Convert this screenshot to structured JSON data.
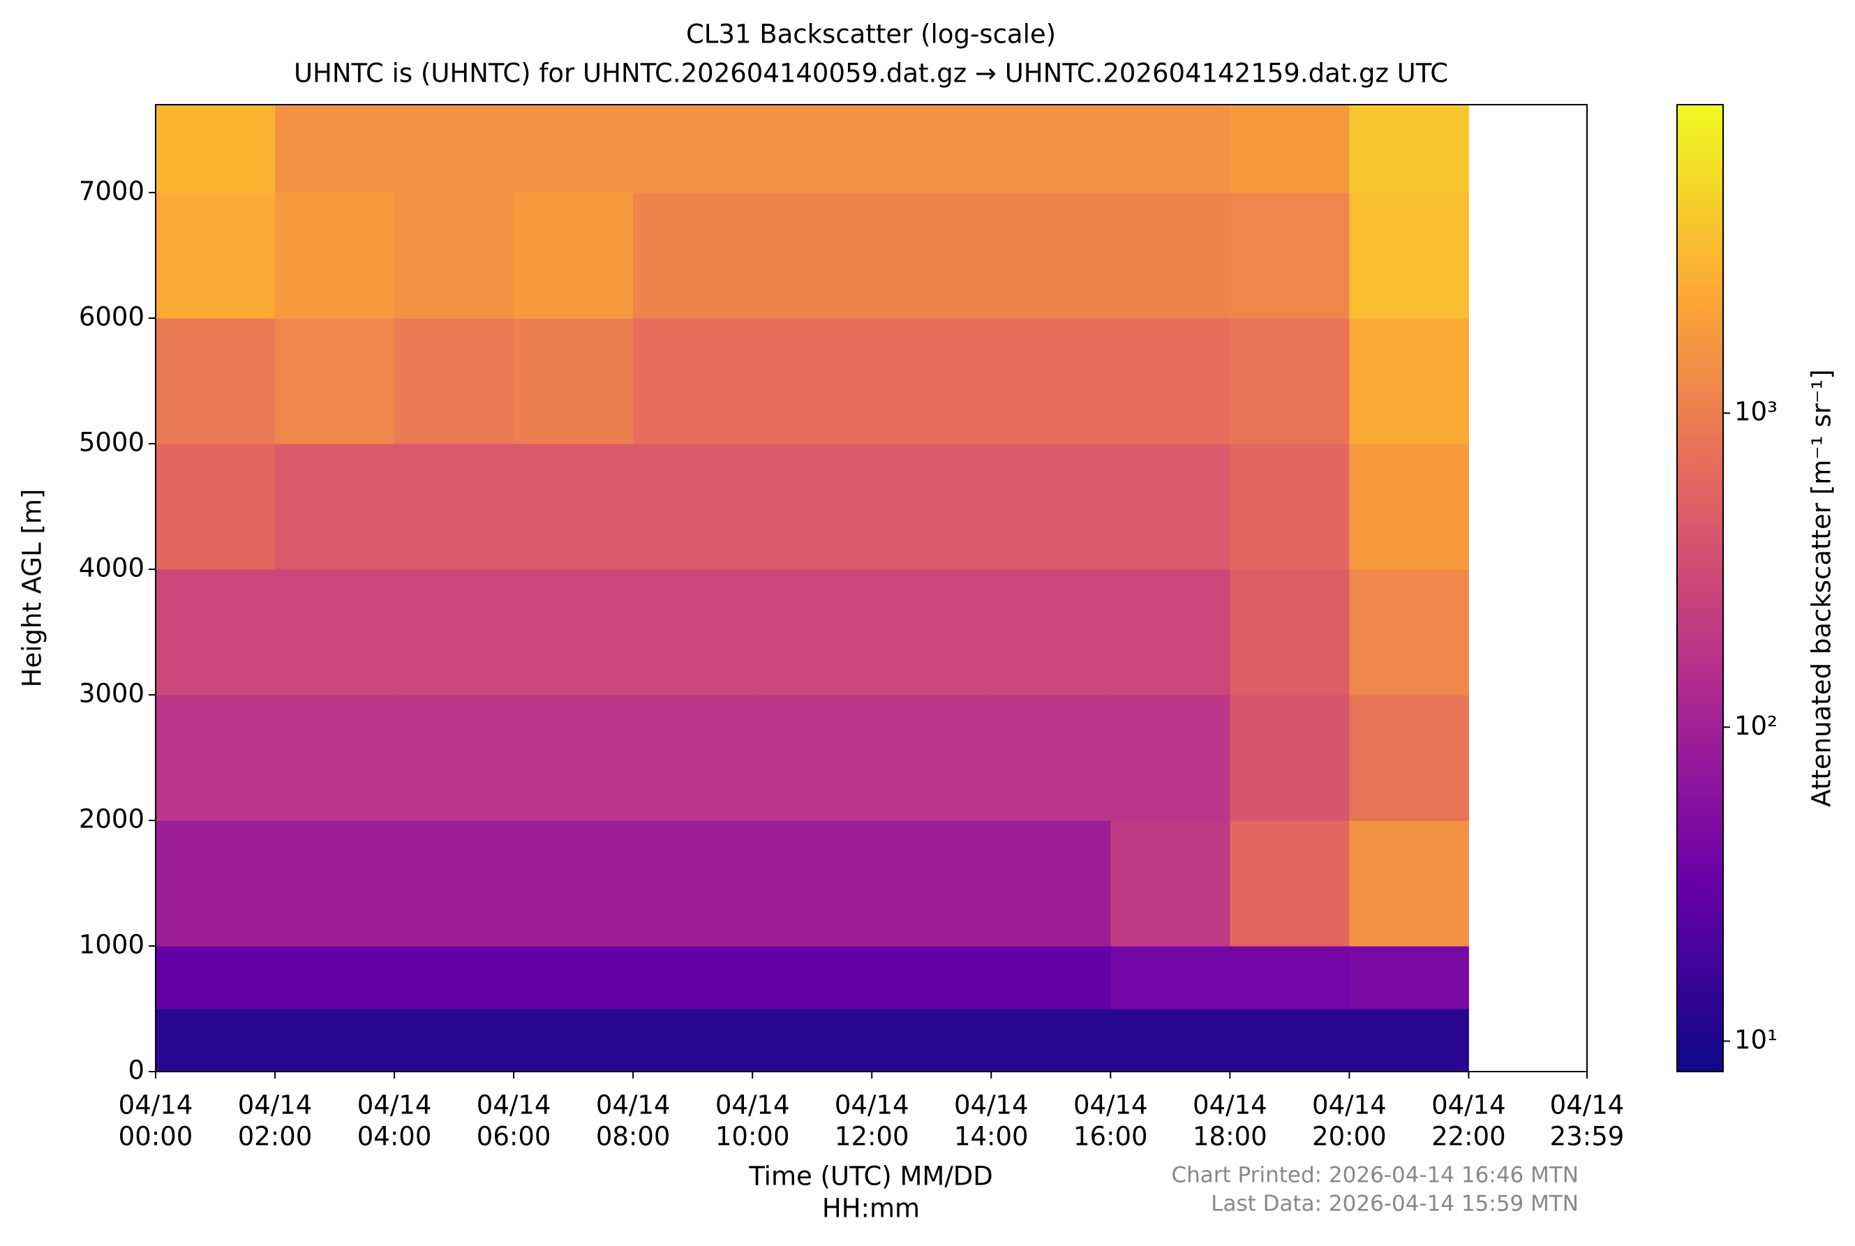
{
  "chart_data": {
    "type": "heatmap",
    "title": "CL31 Backscatter (log-scale)",
    "subtitle": "UHNTC is (UHNTC) for UHNTC.202604140059.dat.gz → UHNTC.202604142159.dat.gz UTC",
    "xlabel": [
      "Time (UTC) MM/DD",
      "HH:mm"
    ],
    "ylabel": "Height AGL [m]",
    "colorbar_label": "Attenuated backscatter [m⁻¹ sr⁻¹]",
    "footer": [
      "Chart Printed: 2026-04-14 16:46 MTN",
      "Last Data: 2026-04-14 15:59 MTN"
    ],
    "x_edges": [
      0,
      2,
      4,
      6,
      8,
      10,
      12,
      14,
      16,
      18,
      20,
      22
    ],
    "y_edges": [
      0,
      500,
      1000,
      2000,
      3000,
      4000,
      5000,
      6000,
      7000,
      7700
    ],
    "values": [
      [
        12,
        12,
        12,
        12,
        12,
        12,
        12,
        12,
        12,
        12,
        12
      ],
      [
        30,
        30,
        30,
        30,
        30,
        30,
        30,
        30,
        40,
        40,
        45
      ],
      [
        90,
        90,
        90,
        90,
        90,
        90,
        90,
        90,
        200,
        600,
        1500
      ],
      [
        180,
        180,
        180,
        180,
        180,
        180,
        180,
        180,
        180,
        400,
        800
      ],
      [
        280,
        280,
        280,
        280,
        280,
        280,
        280,
        280,
        280,
        500,
        1200
      ],
      [
        600,
        450,
        450,
        450,
        450,
        450,
        450,
        450,
        450,
        600,
        1800
      ],
      [
        900,
        1200,
        900,
        1000,
        700,
        700,
        700,
        700,
        700,
        800,
        2500
      ],
      [
        2500,
        1800,
        1500,
        1800,
        1100,
        1100,
        1100,
        1100,
        1100,
        1200,
        3500
      ],
      [
        3000,
        1500,
        1500,
        1500,
        1500,
        1500,
        1500,
        1500,
        1500,
        1800,
        4000
      ]
    ],
    "xlim": [
      0,
      23.983
    ],
    "xticks": [
      {
        "value": 0,
        "label": [
          "04/14",
          "00:00"
        ]
      },
      {
        "value": 2,
        "label": [
          "04/14",
          "02:00"
        ]
      },
      {
        "value": 4,
        "label": [
          "04/14",
          "04:00"
        ]
      },
      {
        "value": 6,
        "label": [
          "04/14",
          "06:00"
        ]
      },
      {
        "value": 8,
        "label": [
          "04/14",
          "08:00"
        ]
      },
      {
        "value": 10,
        "label": [
          "04/14",
          "10:00"
        ]
      },
      {
        "value": 12,
        "label": [
          "04/14",
          "12:00"
        ]
      },
      {
        "value": 14,
        "label": [
          "04/14",
          "14:00"
        ]
      },
      {
        "value": 16,
        "label": [
          "04/14",
          "16:00"
        ]
      },
      {
        "value": 18,
        "label": [
          "04/14",
          "18:00"
        ]
      },
      {
        "value": 20,
        "label": [
          "04/14",
          "20:00"
        ]
      },
      {
        "value": 22,
        "label": [
          "04/14",
          "22:00"
        ]
      },
      {
        "value": 23.983,
        "label": [
          "04/14",
          "23:59"
        ]
      }
    ],
    "ylim": [
      0,
      7700
    ],
    "yticks": [
      0,
      1000,
      2000,
      3000,
      4000,
      5000,
      6000,
      7000
    ],
    "clim": [
      8,
      9600
    ],
    "cscale": "log",
    "cticks": [
      {
        "value": 10,
        "label": "10¹"
      },
      {
        "value": 100,
        "label": "10²"
      },
      {
        "value": 1000,
        "label": "10³"
      }
    ],
    "colormap": [
      "#0d0887",
      "#6a00a8",
      "#b12a90",
      "#e16462",
      "#fca636",
      "#f0f921"
    ]
  }
}
